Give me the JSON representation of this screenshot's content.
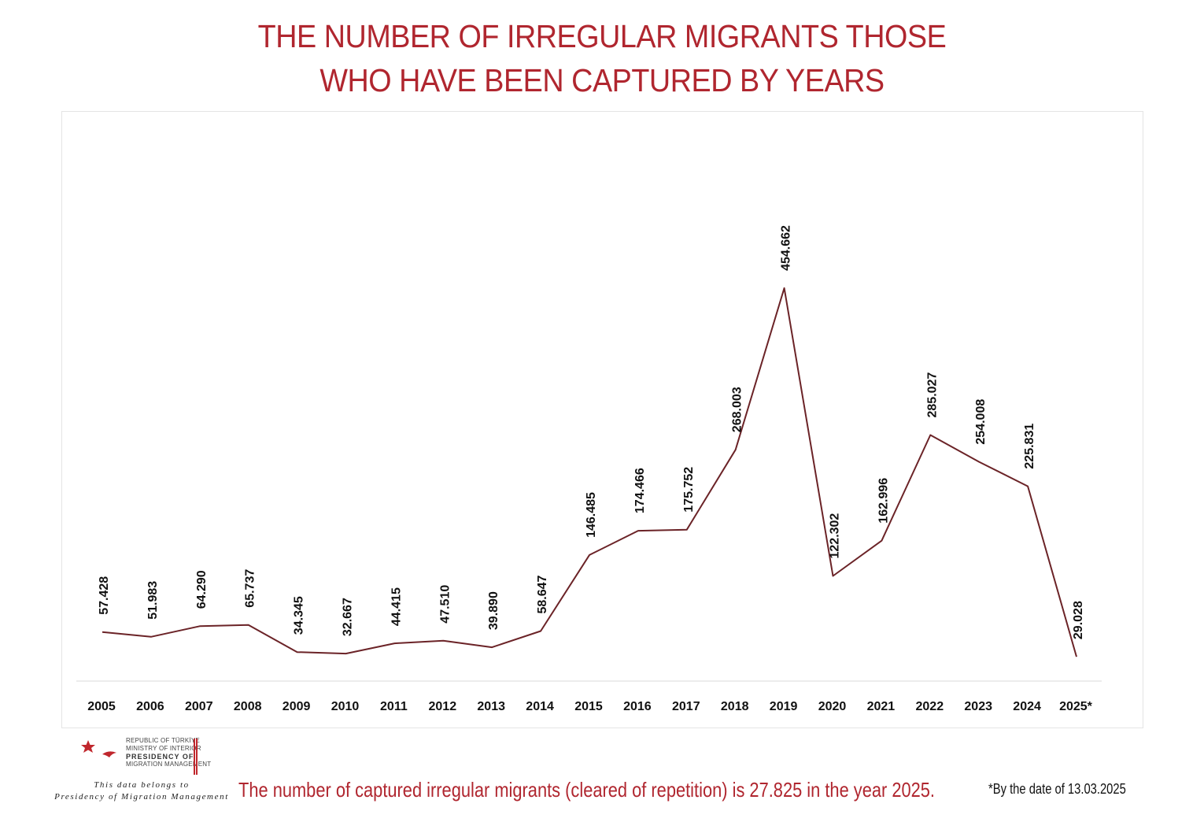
{
  "title_lines": [
    "THE NUMBER OF IRREGULAR MIGRANTS THOSE",
    "WHO HAVE BEEN CAPTURED BY YEARS"
  ],
  "chart_data": {
    "type": "line",
    "title": "THE NUMBER OF IRREGULAR MIGRANTS THOSE WHO HAVE BEEN CAPTURED BY YEARS",
    "categories": [
      "2005",
      "2006",
      "2007",
      "2008",
      "2009",
      "2010",
      "2011",
      "2012",
      "2013",
      "2014",
      "2015",
      "2016",
      "2017",
      "2018",
      "2019",
      "2020",
      "2021",
      "2022",
      "2023",
      "2024",
      "2025*"
    ],
    "values": [
      57428,
      51983,
      64290,
      65737,
      34345,
      32667,
      44415,
      47510,
      39890,
      58647,
      146485,
      174466,
      175752,
      268003,
      454662,
      122302,
      162996,
      285027,
      254008,
      225831,
      29028
    ],
    "labels": [
      "57.428",
      "51.983",
      "64.290",
      "65.737",
      "34.345",
      "32.667",
      "44.415",
      "47.510",
      "39.890",
      "58.647",
      "146.485",
      "174.466",
      "175.752",
      "268.003",
      "454.662",
      "122.302",
      "162.996",
      "285.027",
      "254.008",
      "225.831",
      "29.028"
    ],
    "xlabel": "",
    "ylabel": "",
    "ylim": [
      0,
      500000
    ],
    "grid": false,
    "legend": "none",
    "line_color": "#6b2327"
  },
  "logo": {
    "lines": [
      "REPUBLIC OF TÜRKİYE",
      "MINISTRY OF INTERIOR",
      "PRESIDENCY OF",
      "MIGRATION MANAGEMENT"
    ],
    "star_color": "#c0272d"
  },
  "credit_lines": [
    "This data belongs to",
    "Presidency of Migration Management"
  ],
  "footnote": "The number of captured irregular migrants (cleared of repetition) is 27.825 in the year 2025.",
  "date_note": "*By the date of 13.03.2025"
}
